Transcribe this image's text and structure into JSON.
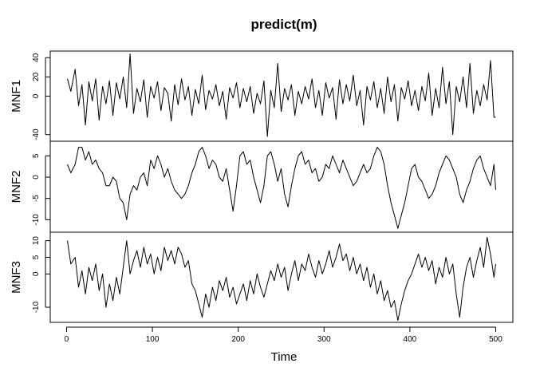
{
  "chart_data": {
    "type": "line",
    "title": "predict(m)",
    "xlabel": "Time",
    "xlim": [
      1,
      500
    ],
    "x_ticks": [
      0,
      100,
      200,
      300,
      400,
      500
    ],
    "grid": false,
    "legend": "none",
    "panels": [
      {
        "name": "MNF1",
        "ylim": [
          -45,
          45
        ],
        "y_ticks": [
          -40,
          0,
          20,
          40
        ],
        "color": "#000000",
        "x": [
          1,
          5,
          10,
          14,
          18,
          22,
          26,
          30,
          34,
          38,
          42,
          46,
          50,
          54,
          58,
          62,
          66,
          70,
          74,
          78,
          82,
          86,
          90,
          94,
          98,
          102,
          106,
          110,
          114,
          118,
          122,
          126,
          130,
          134,
          138,
          142,
          146,
          150,
          154,
          158,
          162,
          166,
          170,
          174,
          178,
          182,
          186,
          190,
          194,
          198,
          202,
          206,
          210,
          214,
          218,
          222,
          226,
          230,
          234,
          238,
          242,
          246,
          250,
          254,
          258,
          262,
          266,
          270,
          274,
          278,
          282,
          286,
          290,
          294,
          298,
          302,
          306,
          310,
          314,
          318,
          322,
          326,
          330,
          334,
          338,
          342,
          346,
          350,
          354,
          358,
          362,
          366,
          370,
          374,
          378,
          382,
          386,
          390,
          394,
          398,
          402,
          406,
          410,
          414,
          418,
          422,
          426,
          430,
          434,
          438,
          442,
          446,
          450,
          454,
          458,
          462,
          466,
          470,
          474,
          478,
          482,
          486,
          490,
          494,
          498,
          500
        ],
        "y": [
          18,
          5,
          28,
          -10,
          12,
          -30,
          15,
          -5,
          18,
          -25,
          10,
          -8,
          16,
          -20,
          14,
          -3,
          20,
          -12,
          44,
          -18,
          8,
          -6,
          17,
          -22,
          10,
          -2,
          15,
          -15,
          9,
          3,
          -26,
          12,
          -9,
          18,
          -4,
          10,
          -20,
          7,
          -8,
          22,
          -14,
          6,
          -3,
          12,
          -10,
          5,
          -24,
          9,
          -2,
          14,
          -12,
          8,
          -6,
          10,
          -18,
          3,
          -8,
          16,
          -42,
          6,
          -12,
          34,
          -16,
          8,
          -4,
          12,
          -20,
          5,
          -8,
          10,
          -3,
          18,
          -12,
          6,
          -20,
          14,
          -2,
          9,
          -24,
          17,
          -8,
          12,
          -5,
          22,
          -10,
          6,
          -30,
          10,
          -4,
          15,
          -12,
          8,
          -18,
          20,
          -6,
          12,
          -26,
          9,
          -3,
          16,
          -10,
          6,
          -15,
          10,
          -5,
          24,
          -20,
          8,
          -12,
          30,
          -8,
          15,
          -40,
          10,
          -6,
          20,
          -12,
          34,
          -18,
          6,
          -10,
          12,
          -4,
          37,
          -22,
          -22
        ]
      },
      {
        "name": "MNF2",
        "ylim": [
          -12.5,
          8
        ],
        "y_ticks": [
          -10,
          -5,
          0,
          5
        ],
        "color": "#000000",
        "x": [
          1,
          5,
          10,
          14,
          18,
          22,
          26,
          30,
          34,
          38,
          42,
          46,
          50,
          54,
          58,
          62,
          66,
          70,
          74,
          78,
          82,
          86,
          90,
          94,
          98,
          102,
          106,
          110,
          114,
          118,
          122,
          126,
          130,
          134,
          138,
          142,
          146,
          150,
          154,
          158,
          162,
          166,
          170,
          174,
          178,
          182,
          186,
          190,
          194,
          198,
          202,
          206,
          210,
          214,
          218,
          222,
          226,
          230,
          234,
          238,
          242,
          246,
          250,
          254,
          258,
          262,
          266,
          270,
          274,
          278,
          282,
          286,
          290,
          294,
          298,
          302,
          306,
          310,
          314,
          318,
          322,
          326,
          330,
          334,
          338,
          342,
          346,
          350,
          354,
          358,
          362,
          366,
          370,
          374,
          378,
          382,
          386,
          390,
          394,
          398,
          402,
          406,
          410,
          414,
          418,
          422,
          426,
          430,
          434,
          438,
          442,
          446,
          450,
          454,
          458,
          462,
          466,
          470,
          474,
          478,
          482,
          486,
          490,
          494,
          498,
          500
        ],
        "y": [
          3,
          1,
          3,
          7,
          7,
          4,
          6,
          3,
          4,
          2,
          1,
          -2,
          -2,
          0,
          -1,
          -5,
          -6,
          -10,
          -4,
          -2,
          -3,
          0,
          1,
          -2,
          4,
          2,
          5,
          3,
          0,
          2,
          -1,
          -3,
          -4,
          -5,
          -4,
          -2,
          1,
          3,
          6,
          7,
          5,
          2,
          4,
          3,
          0,
          -1,
          2,
          -3,
          -8,
          -2,
          5,
          6,
          3,
          4,
          0,
          -3,
          -6,
          -2,
          5,
          6,
          3,
          -1,
          2,
          -4,
          -7,
          -2,
          2,
          5,
          6,
          3,
          4,
          1,
          2,
          -1,
          0,
          3,
          2,
          5,
          3,
          1,
          4,
          2,
          0,
          -2,
          -1,
          1,
          3,
          1,
          2,
          5,
          7,
          6,
          3,
          -2,
          -6,
          -9,
          -12,
          -9,
          -6,
          -2,
          2,
          3,
          0,
          -1,
          -3,
          -5,
          -4,
          -2,
          1,
          3,
          5,
          4,
          2,
          0,
          -4,
          -6,
          -3,
          -1,
          2,
          4,
          5,
          2,
          0,
          -2,
          3,
          -3
        ]
      },
      {
        "name": "MNF3",
        "ylim": [
          -14,
          12
        ],
        "y_ticks": [
          -10,
          0,
          5,
          10
        ],
        "color": "#000000",
        "x": [
          1,
          5,
          10,
          14,
          18,
          22,
          26,
          30,
          34,
          38,
          42,
          46,
          50,
          54,
          58,
          62,
          66,
          70,
          74,
          78,
          82,
          86,
          90,
          94,
          98,
          102,
          106,
          110,
          114,
          118,
          122,
          126,
          130,
          134,
          138,
          142,
          146,
          150,
          154,
          158,
          162,
          166,
          170,
          174,
          178,
          182,
          186,
          190,
          194,
          198,
          202,
          206,
          210,
          214,
          218,
          222,
          226,
          230,
          234,
          238,
          242,
          246,
          250,
          254,
          258,
          262,
          266,
          270,
          274,
          278,
          282,
          286,
          290,
          294,
          298,
          302,
          306,
          310,
          314,
          318,
          322,
          326,
          330,
          334,
          338,
          342,
          346,
          350,
          354,
          358,
          362,
          366,
          370,
          374,
          378,
          382,
          386,
          390,
          394,
          398,
          402,
          406,
          410,
          414,
          418,
          422,
          426,
          430,
          434,
          438,
          442,
          446,
          450,
          454,
          458,
          462,
          466,
          470,
          474,
          478,
          482,
          486,
          490,
          494,
          498,
          500
        ],
        "y": [
          10,
          3,
          5,
          -4,
          1,
          -6,
          2,
          -2,
          3,
          -5,
          0,
          -10,
          -3,
          -8,
          -1,
          -6,
          2,
          10,
          0,
          4,
          7,
          2,
          8,
          3,
          6,
          0,
          5,
          1,
          8,
          4,
          7,
          3,
          8,
          6,
          2,
          4,
          -3,
          -5,
          -9,
          -13,
          -6,
          -10,
          -4,
          -8,
          -2,
          -5,
          -1,
          -7,
          -4,
          -9,
          -6,
          -3,
          -8,
          -2,
          -6,
          0,
          -4,
          -7,
          -3,
          1,
          -2,
          3,
          -1,
          2,
          -5,
          0,
          4,
          -2,
          3,
          1,
          6,
          2,
          -1,
          4,
          0,
          3,
          7,
          2,
          5,
          9,
          4,
          6,
          1,
          5,
          0,
          3,
          -2,
          2,
          -4,
          0,
          -6,
          -2,
          -8,
          -5,
          -10,
          -8,
          -14,
          -9,
          -5,
          -2,
          0,
          3,
          6,
          2,
          5,
          1,
          4,
          -3,
          2,
          -1,
          5,
          0,
          3,
          -6,
          -13,
          -4,
          2,
          5,
          -1,
          4,
          8,
          2,
          11,
          6,
          -1,
          3
        ]
      }
    ]
  }
}
